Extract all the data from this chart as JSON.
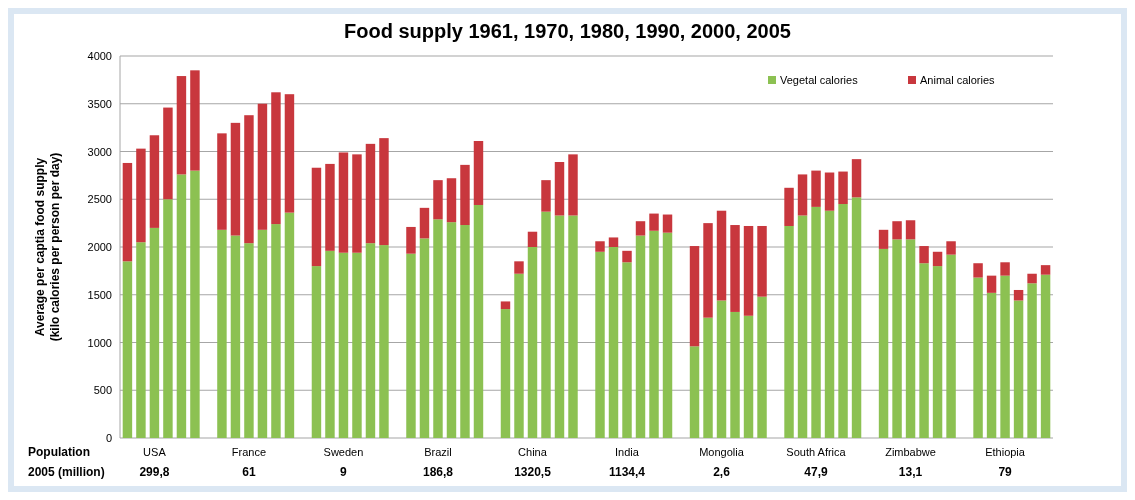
{
  "chart_data": {
    "type": "bar",
    "title": "Food supply 1961, 1970, 1980, 1990, 2000, 2005",
    "ylabel": "Average per captia food supply\n(kilo calories per person per day)",
    "stacked": true,
    "grid": "y",
    "legend": "top right",
    "ylim": [
      0,
      4000
    ],
    "yticks": [
      0,
      500,
      1000,
      1500,
      2000,
      2500,
      3000,
      3500,
      4000
    ],
    "categories": [
      null,
      null,
      "USA",
      null,
      null,
      null,
      null,
      null,
      null,
      "France",
      null,
      null,
      null,
      null,
      null,
      null,
      "Sweden",
      null,
      null,
      null,
      null,
      null,
      null,
      "Brazil",
      null,
      null,
      null,
      null,
      null,
      null,
      "China",
      null,
      null,
      null,
      null,
      null,
      null,
      "India",
      null,
      null,
      null,
      null,
      null,
      null,
      "Mongolia",
      null,
      null,
      null,
      null,
      null,
      null,
      "South Africa",
      null,
      null,
      null,
      null,
      null,
      null,
      "Zimbabwe",
      null,
      null,
      null,
      null,
      null,
      null,
      "Ethiopia",
      null,
      null,
      null
    ],
    "series": [
      {
        "name": "Vegetal calories",
        "color": "#8cc152",
        "values": [
          1850,
          2050,
          2200,
          2500,
          2760,
          2800,
          null,
          2180,
          2120,
          2040,
          2180,
          2240,
          2360,
          null,
          1800,
          1960,
          1940,
          1940,
          2040,
          2020,
          null,
          1930,
          2090,
          2290,
          2260,
          2230,
          2440,
          null,
          1350,
          1720,
          2000,
          2370,
          2330,
          2330,
          null,
          1950,
          2000,
          1840,
          2120,
          2170,
          2150,
          null,
          960,
          1260,
          1440,
          1320,
          1280,
          1480,
          null,
          2220,
          2330,
          2420,
          2380,
          2450,
          2520,
          null,
          1980,
          2080,
          2080,
          1830,
          1800,
          1920,
          null,
          1680,
          1520,
          1700,
          1440,
          1620,
          1710
        ]
      },
      {
        "name": "Animal calories",
        "color": "#c8373d",
        "values": [
          1030,
          980,
          970,
          960,
          1030,
          1050,
          null,
          1010,
          1180,
          1340,
          1320,
          1380,
          1240,
          null,
          1030,
          910,
          1050,
          1030,
          1040,
          1120,
          null,
          280,
          320,
          410,
          460,
          630,
          670,
          null,
          80,
          130,
          160,
          330,
          560,
          640,
          null,
          110,
          100,
          120,
          150,
          180,
          190,
          null,
          1050,
          990,
          940,
          910,
          940,
          740,
          null,
          400,
          430,
          380,
          400,
          340,
          400,
          null,
          200,
          190,
          200,
          180,
          150,
          140,
          null,
          150,
          180,
          140,
          110,
          100,
          100
        ]
      }
    ],
    "annotations": [
      "Population\n2005 (million)",
      "299,8",
      "61",
      "9",
      "186,8",
      "1320,5",
      "1134,4",
      "2,6",
      "47,9",
      "13,1",
      "79"
    ]
  }
}
